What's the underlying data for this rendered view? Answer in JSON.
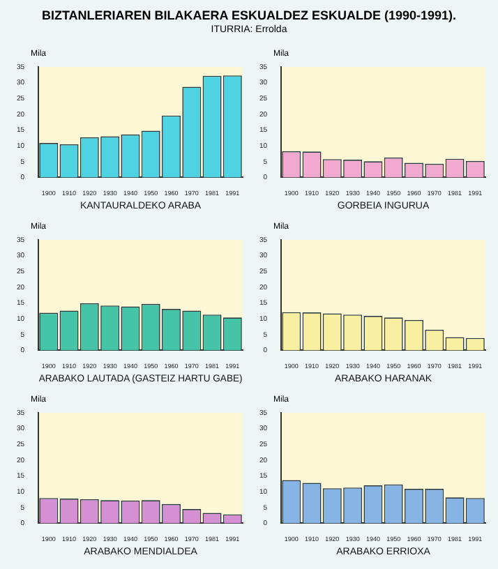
{
  "chart_data": [
    {
      "type": "bar",
      "title": "BIZTANLERIAREN BILAKAERA ESKUALDEZ ESKUALDE (1990-1991).",
      "subtitle": "ITURRIA: Errolda",
      "ylabel": "Mila",
      "xlabel": "KANTAURALDEKO ARABA",
      "categories": [
        "1900",
        "1910",
        "1920",
        "1930",
        "1940",
        "1950",
        "1960",
        "1970",
        "1981",
        "1991"
      ],
      "values": [
        10.9,
        10.5,
        12.7,
        13.0,
        13.6,
        14.8,
        19.6,
        28.7,
        32.2,
        32.3
      ],
      "color": "#4fd3e3",
      "ylim": [
        0,
        35
      ],
      "yticks": [
        0,
        5,
        10,
        15,
        20,
        25,
        30,
        35
      ],
      "grid": false,
      "legend": false
    },
    {
      "type": "bar",
      "ylabel": "Mila",
      "xlabel": "GORBEIA INGURUA",
      "categories": [
        "1900",
        "1910",
        "1920",
        "1930",
        "1940",
        "1950",
        "1960",
        "1970",
        "1981",
        "1991"
      ],
      "values": [
        8.3,
        8.2,
        5.8,
        5.6,
        5.1,
        6.3,
        4.6,
        4.3,
        5.9,
        5.2
      ],
      "color": "#f2a9cf",
      "ylim": [
        0,
        35
      ],
      "yticks": [
        0,
        5,
        10,
        15,
        20,
        25,
        30,
        35
      ],
      "grid": false,
      "legend": false
    },
    {
      "type": "bar",
      "ylabel": "Mila",
      "xlabel": "ARABAKO LAUTADA (GASTEIZ HARTU GABE)",
      "categories": [
        "1900",
        "1910",
        "1920",
        "1930",
        "1940",
        "1950",
        "1960",
        "1970",
        "1981",
        "1991"
      ],
      "values": [
        11.9,
        12.6,
        14.9,
        14.2,
        13.9,
        14.7,
        13.1,
        12.6,
        11.3,
        10.4
      ],
      "color": "#45c4a8",
      "ylim": [
        0,
        35
      ],
      "yticks": [
        0,
        5,
        10,
        15,
        20,
        25,
        30,
        35
      ],
      "grid": false,
      "legend": false
    },
    {
      "type": "bar",
      "ylabel": "Mila",
      "xlabel": "ARABAKO HARANAK",
      "categories": [
        "1900",
        "1910",
        "1920",
        "1930",
        "1940",
        "1950",
        "1960",
        "1970",
        "1981",
        "1991"
      ],
      "values": [
        12.1,
        12.0,
        11.7,
        11.3,
        10.9,
        10.4,
        9.6,
        6.5,
        4.2,
        3.9
      ],
      "color": "#f8f0a0",
      "ylim": [
        0,
        35
      ],
      "yticks": [
        0,
        5,
        10,
        15,
        20,
        25,
        30,
        35
      ],
      "grid": false,
      "legend": false
    },
    {
      "type": "bar",
      "ylabel": "Mila",
      "xlabel": "ARABAKO MENDIALDEA",
      "categories": [
        "1900",
        "1910",
        "1920",
        "1930",
        "1940",
        "1950",
        "1960",
        "1970",
        "1981",
        "1991"
      ],
      "values": [
        8.0,
        7.8,
        7.6,
        7.3,
        7.2,
        7.3,
        6.1,
        4.5,
        3.3,
        2.8
      ],
      "color": "#d58fd3",
      "ylim": [
        0,
        35
      ],
      "yticks": [
        0,
        5,
        10,
        15,
        20,
        25,
        30,
        35
      ],
      "grid": false,
      "legend": false
    },
    {
      "type": "bar",
      "ylabel": "Mila",
      "xlabel": "ARABAKO ERRIOXA",
      "categories": [
        "1900",
        "1910",
        "1920",
        "1930",
        "1940",
        "1950",
        "1960",
        "1970",
        "1981",
        "1991"
      ],
      "values": [
        13.7,
        12.8,
        11.1,
        11.3,
        12.0,
        12.3,
        10.9,
        10.9,
        8.2,
        8.0
      ],
      "color": "#86b4e4",
      "ylim": [
        0,
        35
      ],
      "yticks": [
        0,
        5,
        10,
        15,
        20,
        25,
        30,
        35
      ],
      "grid": false,
      "legend": false
    }
  ]
}
